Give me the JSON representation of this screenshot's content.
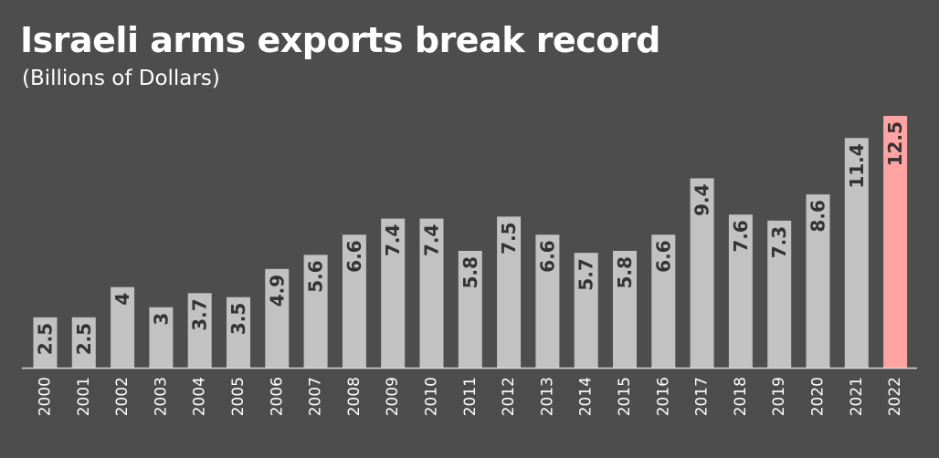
{
  "chart_data": {
    "type": "bar",
    "title": "Israeli arms exports break record",
    "subtitle": "(Billions of Dollars)",
    "categories": [
      "2000",
      "2001",
      "2002",
      "2003",
      "2004",
      "2005",
      "2006",
      "2007",
      "2008",
      "2009",
      "2010",
      "2011",
      "2012",
      "2013",
      "2014",
      "2015",
      "2016",
      "2017",
      "2018",
      "2019",
      "2020",
      "2021",
      "2022"
    ],
    "values": [
      2.5,
      2.5,
      4,
      3,
      3.7,
      3.5,
      4.9,
      5.6,
      6.6,
      7.4,
      7.4,
      5.8,
      7.5,
      6.6,
      5.7,
      5.8,
      6.6,
      9.4,
      7.6,
      7.3,
      8.6,
      11.4,
      12.5
    ],
    "value_labels": [
      "2.5",
      "2.5",
      "4",
      "3",
      "3.7",
      "3.5",
      "4.9",
      "5.6",
      "6.6",
      "7.4",
      "7.4",
      "5.8",
      "7.5",
      "6.6",
      "5.7",
      "5.8",
      "6.6",
      "9.4",
      "7.6",
      "7.3",
      "8.6",
      "11.4",
      "12.5"
    ],
    "xlabel": "",
    "ylabel": "",
    "ylim": [
      0,
      12.5
    ],
    "grid": false,
    "legend": "none",
    "colors": {
      "background": "#4d4d4d",
      "bar": "#c2c2c2",
      "highlight_bar": "#ffa3a3",
      "axis": "#d9d9d9",
      "label": "#333333",
      "text": "#ffffff"
    },
    "highlight_category": "2022"
  }
}
